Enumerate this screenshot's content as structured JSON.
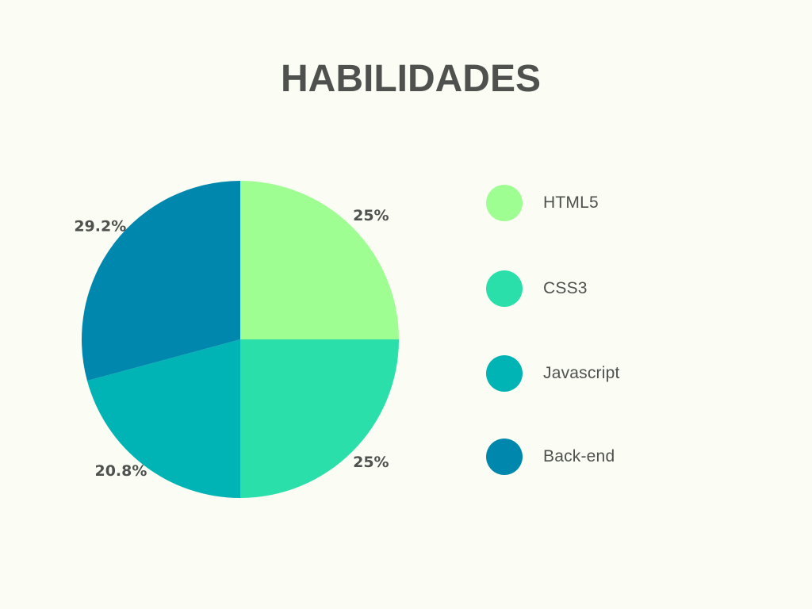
{
  "chart_data": {
    "type": "pie",
    "title": "HABILIDADES",
    "slices": [
      {
        "label": "HTML5",
        "value": 25,
        "display": "25%",
        "color": "#9efe91"
      },
      {
        "label": "CSS3",
        "value": 25,
        "display": "25%",
        "color": "#2bdfaa"
      },
      {
        "label": "Javascript",
        "value": 20.8,
        "display": "20.8%",
        "color": "#00b4b6"
      },
      {
        "label": "Back-end",
        "value": 29.2,
        "display": "29.2%",
        "color": "#0087ad"
      }
    ],
    "legend_position": "right",
    "start_angle": "top",
    "direction": "clockwise"
  }
}
